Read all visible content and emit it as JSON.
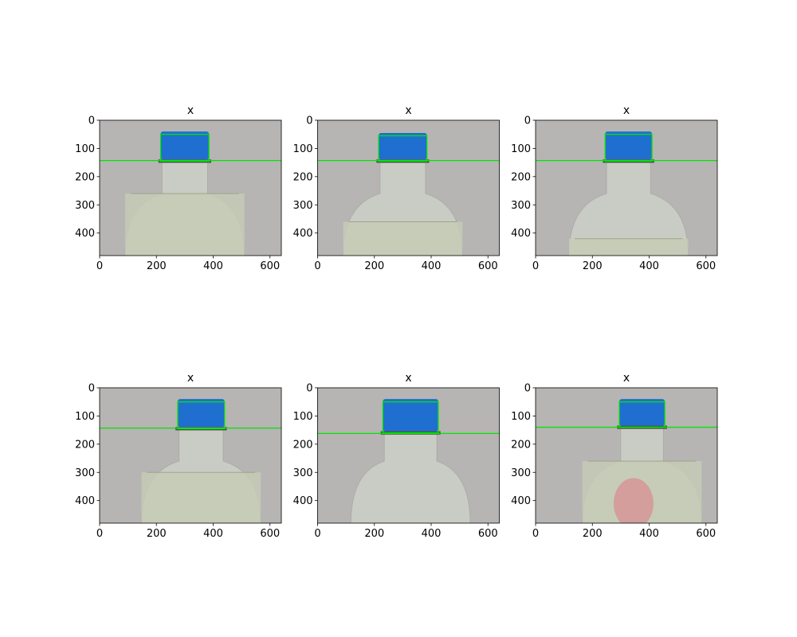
{
  "figure": {
    "background": "#ffffff",
    "rows": 2,
    "cols": 3
  },
  "panel_defaults": {
    "xticks": [
      "0",
      "200",
      "400",
      "600"
    ],
    "yticks": [
      "0",
      "100",
      "200",
      "300",
      "400"
    ],
    "image_width": 640,
    "image_height": 480,
    "box_color": "#00e600",
    "cap_color": "#1f6fd1",
    "background_color": "#b7b4b4"
  },
  "panels": [
    {
      "title": "x",
      "box": {
        "x1": 215,
        "y1": 50,
        "x2": 385,
        "y2": 145
      },
      "line_y": 143,
      "cap": {
        "x1": 215,
        "x2": 385
      },
      "liquid_level": 220,
      "has_red": false
    },
    {
      "title": "x",
      "box": {
        "x1": 215,
        "y1": 55,
        "x2": 385,
        "y2": 145
      },
      "line_y": 143,
      "cap": {
        "x1": 215,
        "x2": 385
      },
      "liquid_level": 360,
      "has_red": false
    },
    {
      "title": "x",
      "box": {
        "x1": 245,
        "y1": 50,
        "x2": 410,
        "y2": 145
      },
      "line_y": 143,
      "cap": {
        "x1": 245,
        "x2": 410
      },
      "liquid_level": 420,
      "has_red": false
    },
    {
      "title": "x",
      "box": {
        "x1": 275,
        "y1": 50,
        "x2": 440,
        "y2": 145
      },
      "line_y": 143,
      "cap": {
        "x1": 275,
        "x2": 440
      },
      "liquid_level": 300,
      "has_red": false
    },
    {
      "title": "x",
      "box": {
        "x1": 230,
        "y1": 50,
        "x2": 425,
        "y2": 160
      },
      "line_y": 162,
      "cap": {
        "x1": 230,
        "x2": 425
      },
      "liquid_level": 480,
      "has_red": false
    },
    {
      "title": "x",
      "box": {
        "x1": 295,
        "y1": 50,
        "x2": 455,
        "y2": 140
      },
      "line_y": 140,
      "cap": {
        "x1": 295,
        "x2": 455
      },
      "liquid_level": 250,
      "has_red": true
    }
  ]
}
